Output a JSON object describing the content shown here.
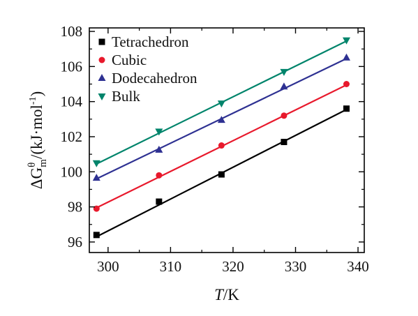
{
  "chart_data": {
    "type": "scatter",
    "xlabel_italic": "T",
    "xlabel_rest": "/K",
    "ylabel_prefix": "ΔG",
    "ylabel_sub": "m",
    "ylabel_sup": "θ",
    "ylabel_unit": "/(kJ·mol",
    "ylabel_unit_sup": "-1",
    "ylabel_close": ")",
    "xlim": [
      297,
      341
    ],
    "ylim": [
      95.4,
      108.2
    ],
    "x_ticks": [
      300,
      310,
      320,
      330,
      340
    ],
    "y_ticks": [
      96,
      98,
      100,
      102,
      104,
      106,
      108
    ],
    "legend_position": "top-left",
    "grid": false,
    "series": [
      {
        "name": "Tetrachedron",
        "marker": "square",
        "color": "#000000",
        "x": [
          298.15,
          308.15,
          318.15,
          328.15,
          338.15
        ],
        "y": [
          96.4,
          98.3,
          99.85,
          101.7,
          103.6
        ],
        "fit": [
          [
            298.15,
            96.3
          ],
          [
            338.15,
            103.55
          ]
        ]
      },
      {
        "name": "Cubic",
        "marker": "circle",
        "color": "#e8192c",
        "x": [
          298.15,
          308.15,
          318.15,
          328.15,
          338.15
        ],
        "y": [
          97.9,
          99.8,
          101.5,
          103.2,
          105.0
        ],
        "fit": [
          [
            298.15,
            97.95
          ],
          [
            338.15,
            104.95
          ]
        ]
      },
      {
        "name": "Dodecahedron",
        "marker": "triangle-up",
        "color": "#2e3192",
        "x": [
          298.15,
          308.15,
          318.15,
          328.15,
          338.15
        ],
        "y": [
          99.65,
          101.25,
          102.95,
          104.85,
          106.5
        ],
        "fit": [
          [
            298.15,
            99.6
          ],
          [
            338.15,
            106.45
          ]
        ]
      },
      {
        "name": "Bulk",
        "marker": "triangle-down",
        "color": "#00846b",
        "x": [
          298.15,
          308.15,
          318.15,
          328.15,
          338.15
        ],
        "y": [
          100.5,
          102.3,
          103.9,
          105.7,
          107.5
        ],
        "fit": [
          [
            298.15,
            100.45
          ],
          [
            338.15,
            107.45
          ]
        ]
      }
    ]
  }
}
